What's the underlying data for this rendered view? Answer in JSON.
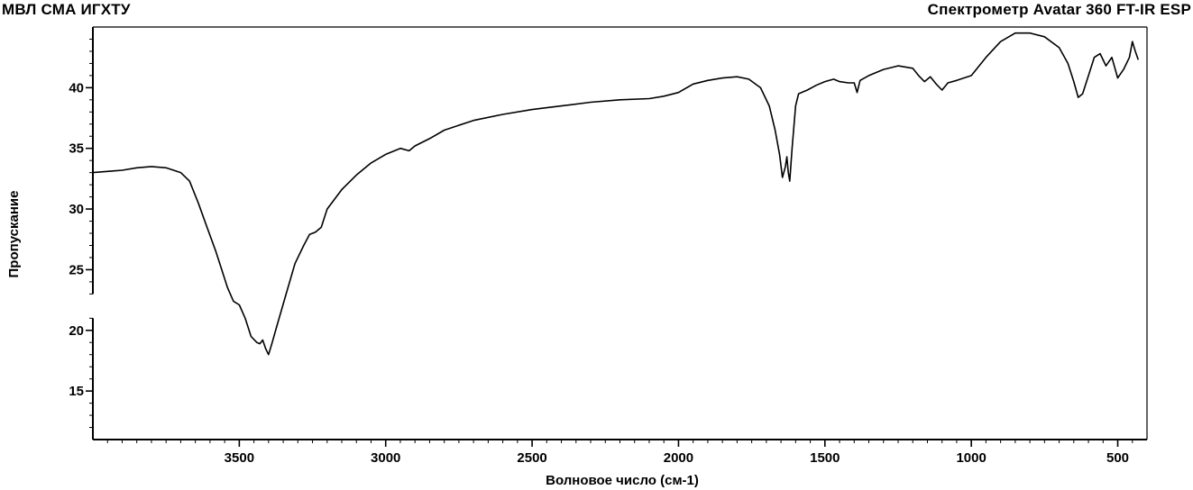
{
  "header": {
    "left": "МВЛ СМА ИГХТУ",
    "right": "Спектрометр Avatar 360 FT-IR ESP"
  },
  "chart_data": {
    "type": "line",
    "xlabel": "Волновое число (см-1)",
    "ylabel": "Пропускание",
    "xlim": [
      4000,
      400
    ],
    "ylim": [
      11,
      45
    ],
    "x_reversed": true,
    "grid": false,
    "x_ticks": [
      3500,
      3000,
      2500,
      2000,
      1500,
      1000,
      500
    ],
    "y_ticks": [
      15,
      20,
      25,
      30,
      35,
      40
    ],
    "y_axis_break": [
      21,
      23
    ],
    "series": [
      {
        "points": [
          [
            4000,
            33.0
          ],
          [
            3950,
            33.1
          ],
          [
            3900,
            33.2
          ],
          [
            3850,
            33.4
          ],
          [
            3800,
            33.5
          ],
          [
            3750,
            33.4
          ],
          [
            3700,
            33.0
          ],
          [
            3670,
            32.3
          ],
          [
            3640,
            30.5
          ],
          [
            3610,
            28.5
          ],
          [
            3580,
            26.5
          ],
          [
            3560,
            25.0
          ],
          [
            3540,
            23.5
          ],
          [
            3520,
            22.4
          ],
          [
            3500,
            22.1
          ],
          [
            3480,
            21.0
          ],
          [
            3460,
            19.5
          ],
          [
            3440,
            19.0
          ],
          [
            3430,
            18.9
          ],
          [
            3420,
            19.2
          ],
          [
            3410,
            18.5
          ],
          [
            3400,
            18.0
          ],
          [
            3390,
            18.8
          ],
          [
            3370,
            20.5
          ],
          [
            3340,
            23.0
          ],
          [
            3310,
            25.5
          ],
          [
            3280,
            27.0
          ],
          [
            3260,
            27.9
          ],
          [
            3240,
            28.1
          ],
          [
            3220,
            28.5
          ],
          [
            3200,
            30.0
          ],
          [
            3150,
            31.6
          ],
          [
            3100,
            32.8
          ],
          [
            3050,
            33.8
          ],
          [
            3000,
            34.5
          ],
          [
            2950,
            35.0
          ],
          [
            2920,
            34.8
          ],
          [
            2900,
            35.2
          ],
          [
            2850,
            35.8
          ],
          [
            2800,
            36.5
          ],
          [
            2700,
            37.3
          ],
          [
            2600,
            37.8
          ],
          [
            2500,
            38.2
          ],
          [
            2400,
            38.5
          ],
          [
            2300,
            38.8
          ],
          [
            2200,
            39.0
          ],
          [
            2100,
            39.1
          ],
          [
            2050,
            39.3
          ],
          [
            2000,
            39.6
          ],
          [
            1950,
            40.3
          ],
          [
            1900,
            40.6
          ],
          [
            1850,
            40.8
          ],
          [
            1800,
            40.9
          ],
          [
            1760,
            40.7
          ],
          [
            1720,
            40.0
          ],
          [
            1690,
            38.5
          ],
          [
            1670,
            36.5
          ],
          [
            1655,
            34.5
          ],
          [
            1645,
            32.6
          ],
          [
            1635,
            33.5
          ],
          [
            1630,
            34.3
          ],
          [
            1625,
            33.0
          ],
          [
            1620,
            32.3
          ],
          [
            1612,
            35.0
          ],
          [
            1600,
            38.5
          ],
          [
            1590,
            39.5
          ],
          [
            1560,
            39.8
          ],
          [
            1530,
            40.2
          ],
          [
            1500,
            40.5
          ],
          [
            1470,
            40.7
          ],
          [
            1450,
            40.5
          ],
          [
            1420,
            40.4
          ],
          [
            1400,
            40.4
          ],
          [
            1390,
            39.6
          ],
          [
            1380,
            40.6
          ],
          [
            1350,
            41.0
          ],
          [
            1300,
            41.5
          ],
          [
            1250,
            41.8
          ],
          [
            1200,
            41.6
          ],
          [
            1180,
            41.0
          ],
          [
            1160,
            40.5
          ],
          [
            1140,
            40.9
          ],
          [
            1120,
            40.3
          ],
          [
            1100,
            39.8
          ],
          [
            1080,
            40.4
          ],
          [
            1050,
            40.6
          ],
          [
            1000,
            41.0
          ],
          [
            950,
            42.5
          ],
          [
            900,
            43.8
          ],
          [
            850,
            44.5
          ],
          [
            800,
            44.5
          ],
          [
            750,
            44.2
          ],
          [
            700,
            43.3
          ],
          [
            670,
            42.0
          ],
          [
            650,
            40.5
          ],
          [
            635,
            39.2
          ],
          [
            620,
            39.5
          ],
          [
            600,
            41.0
          ],
          [
            580,
            42.5
          ],
          [
            560,
            42.8
          ],
          [
            540,
            41.8
          ],
          [
            520,
            42.5
          ],
          [
            500,
            40.8
          ],
          [
            480,
            41.5
          ],
          [
            460,
            42.5
          ],
          [
            450,
            43.8
          ],
          [
            440,
            43.0
          ],
          [
            430,
            42.3
          ]
        ]
      }
    ]
  }
}
